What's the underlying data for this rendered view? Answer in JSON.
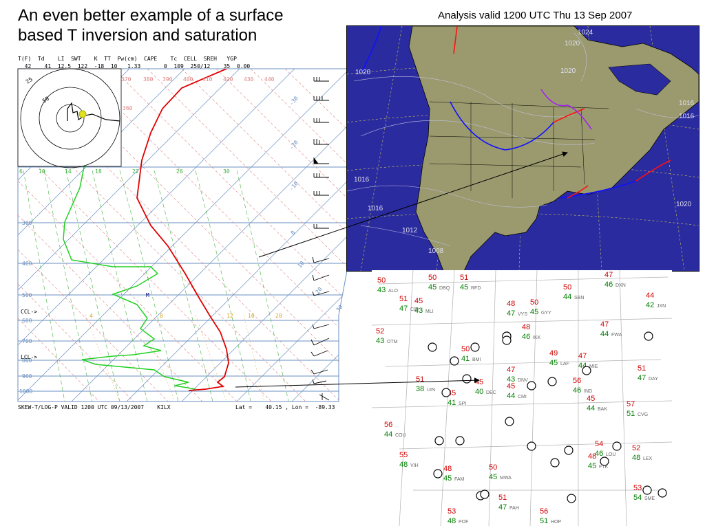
{
  "slide": {
    "title": "An even better example of a surface\nbased T inversion and saturation"
  },
  "skewt": {
    "header_labels": "T(F)  Td    LI  SWT    K  TT  Pw(cm)  CAPE    Tc  CELL  SREH   YGP",
    "header_values": "  42    41  12.5  122  -18  10   1.33       0  109  250/12    35  0.00",
    "footer_left": "SKEW-T/LOG-P VALID 1200 UTC 09/13/2007    KILX",
    "footer_right": "Lat =    40.15 , Lon =  -89.33",
    "pressure_labels": [
      "300",
      "400",
      "500",
      "600",
      "700",
      "800",
      "900",
      "1000"
    ],
    "theta_labels": [
      "370",
      "380",
      "390",
      "400",
      "410",
      "420",
      "430",
      "440"
    ],
    "mixing_labels": [
      "6",
      "10",
      "14",
      "18",
      "22",
      "26",
      "30"
    ],
    "temp_labels": [
      "-30",
      "-20",
      "-10",
      "0",
      "10",
      "20",
      "30"
    ],
    "ccl_label": "CCL->",
    "lcl_label": "LCL->",
    "m_label": "M",
    "left_num_labels": [
      "4",
      "8",
      "12",
      "16",
      "20"
    ],
    "hodo_labels": [
      "25",
      "50",
      "50"
    ]
  },
  "surface_map": {
    "title": "Analysis valid 1200 UTC Thu 13 Sep 2007",
    "isobar_labels": [
      "1024",
      "1020",
      "1020",
      "1016",
      "1016",
      "1012",
      "1008",
      "1016",
      "1020",
      "1020",
      "1016"
    ]
  },
  "station_plot": {
    "stations": [
      {
        "t": "50",
        "td": "43",
        "id": "ALO"
      },
      {
        "t": "51",
        "td": "47",
        "id": "CID"
      },
      {
        "t": "50",
        "td": "45",
        "id": "DBQ"
      },
      {
        "t": "51",
        "td": "45",
        "id": "RFD"
      },
      {
        "t": "48",
        "td": "47",
        "id": "VYS"
      },
      {
        "t": "50",
        "td": "45",
        "id": "GYY"
      },
      {
        "t": "48",
        "td": "46",
        "id": "IKK"
      },
      {
        "t": "52",
        "td": "43",
        "id": "OTM"
      },
      {
        "t": "45",
        "td": "43",
        "id": "MLI"
      },
      {
        "t": "50",
        "td": "41",
        "id": "BMI"
      },
      {
        "t": "47",
        "td": "43",
        "id": "DNV"
      },
      {
        "t": "51",
        "td": "38",
        "id": "UIN"
      },
      {
        "t": "45",
        "td": "41",
        "id": "SPI"
      },
      {
        "t": "45",
        "td": "40",
        "id": "DEC"
      },
      {
        "t": "45",
        "td": "44",
        "id": "CMI"
      },
      {
        "t": "56",
        "td": "44",
        "id": "COU"
      },
      {
        "t": "55",
        "td": "48",
        "id": "VIH"
      },
      {
        "t": "48",
        "td": "45",
        "id": "FAM"
      },
      {
        "t": "50",
        "td": "45",
        "id": "MWA"
      },
      {
        "t": "53",
        "td": "48",
        "id": "POF"
      },
      {
        "t": "56",
        "td": "51",
        "id": "HOP"
      },
      {
        "t": "51",
        "td": "47",
        "id": "PAH"
      },
      {
        "t": "54",
        "td": "46",
        "id": "LOU"
      },
      {
        "t": "52",
        "td": "48",
        "id": "LEX"
      },
      {
        "t": "53",
        "td": "54",
        "id": "SME"
      },
      {
        "t": "47",
        "td": "44",
        "id": "MIE"
      },
      {
        "t": "51",
        "td": "47",
        "id": "DAY"
      },
      {
        "t": "57",
        "td": "51",
        "id": "CVG"
      },
      {
        "t": "48",
        "td": "45",
        "id": "FTK"
      },
      {
        "t": "56",
        "td": "46",
        "id": "IND"
      },
      {
        "t": "45",
        "td": "44",
        "id": "BAK"
      },
      {
        "t": "49",
        "td": "45",
        "id": "LAF"
      },
      {
        "t": "47",
        "td": "44",
        "id": "FWA"
      },
      {
        "t": "47",
        "td": "46",
        "id": "DXN"
      },
      {
        "t": "50",
        "td": "44",
        "id": "SBN"
      },
      {
        "t": "44",
        "td": "42",
        "id": "JXN"
      }
    ]
  }
}
